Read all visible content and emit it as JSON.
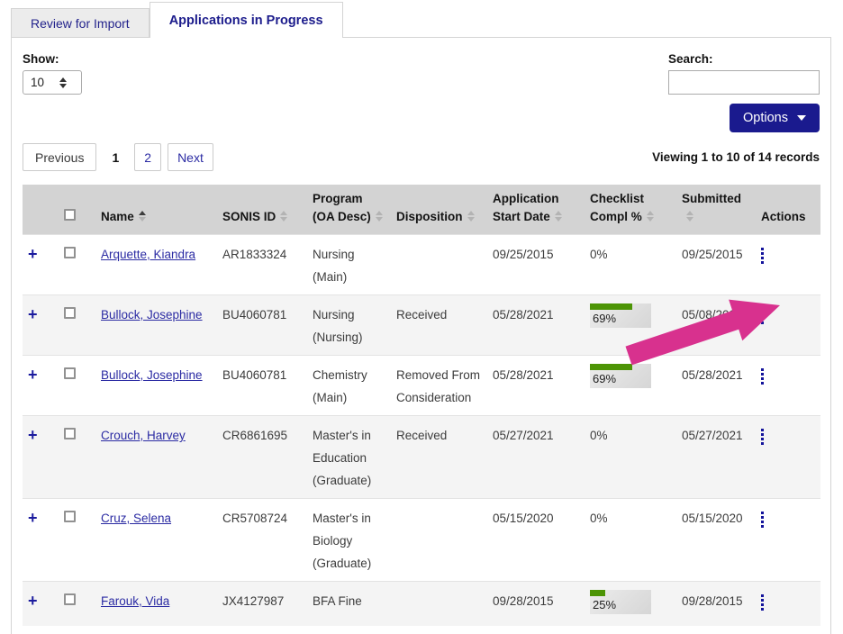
{
  "tabs": {
    "review_for_import": "Review for Import",
    "applications_in_progress": "Applications in Progress"
  },
  "controls": {
    "show_label": "Show:",
    "show_value": "10",
    "search_label": "Search:",
    "search_value": "",
    "options_label": "Options"
  },
  "pagination": {
    "previous_label": "Previous",
    "pages": [
      "1",
      "2"
    ],
    "current_page": "1",
    "next_label": "Next",
    "viewing_text": "Viewing 1 to 10 of 14 records"
  },
  "table": {
    "expand_symbol": "+",
    "columns": {
      "name": "Name",
      "sonis_id": "SONIS ID",
      "program": "Program (OA Desc)",
      "disposition": "Disposition",
      "application_start_date": "Application Start Date",
      "checklist_compl": "Checklist Compl %",
      "submitted": "Submitted",
      "actions": "Actions"
    },
    "sort": {
      "column": "Name",
      "direction": "asc"
    },
    "rows": [
      {
        "name": "Arquette, Kiandra",
        "sonis_id": "AR1833324",
        "program": "Nursing (Main)",
        "disposition": "",
        "application_start_date": "09/25/2015",
        "checklist": {
          "percent": 0,
          "label": "0%",
          "has_bar": false
        },
        "submitted": "09/25/2015"
      },
      {
        "name": "Bullock, Josephine",
        "sonis_id": "BU4060781",
        "program": "Nursing (Nursing)",
        "disposition": "Received",
        "application_start_date": "05/28/2021",
        "checklist": {
          "percent": 69,
          "label": "69%",
          "has_bar": true
        },
        "submitted": "05/08/2024"
      },
      {
        "name": "Bullock, Josephine",
        "sonis_id": "BU4060781",
        "program": "Chemistry (Main)",
        "disposition": "Removed From Consideration",
        "application_start_date": "05/28/2021",
        "checklist": {
          "percent": 69,
          "label": "69%",
          "has_bar": true
        },
        "submitted": "05/28/2021"
      },
      {
        "name": "Crouch, Harvey",
        "sonis_id": "CR6861695",
        "program": "Master's in Education (Graduate)",
        "disposition": "Received",
        "application_start_date": "05/27/2021",
        "checklist": {
          "percent": 0,
          "label": "0%",
          "has_bar": false
        },
        "submitted": "05/27/2021"
      },
      {
        "name": "Cruz, Selena",
        "sonis_id": "CR5708724",
        "program": "Master's in Biology (Graduate)",
        "disposition": "",
        "application_start_date": "05/15/2020",
        "checklist": {
          "percent": 0,
          "label": "0%",
          "has_bar": false
        },
        "submitted": "05/15/2020"
      },
      {
        "name": "Farouk, Vida",
        "sonis_id": "JX4127987",
        "program": "BFA Fine",
        "disposition": "",
        "application_start_date": "09/28/2015",
        "checklist": {
          "percent": 25,
          "label": "25%",
          "has_bar": true
        },
        "submitted": "09/28/2015"
      }
    ]
  },
  "annotation": {
    "arrow_color": "#d8318e",
    "points_to": "row-2-actions-menu"
  },
  "colors": {
    "navy_button": "#1a1a8e",
    "tab_text": "#1c1c8c",
    "link": "#2b2ba3",
    "header_bg": "#d3d3d3",
    "row_stripe": "#f4f4f4",
    "progress_green": "#4c9405",
    "arrow_pink": "#d8318e"
  }
}
